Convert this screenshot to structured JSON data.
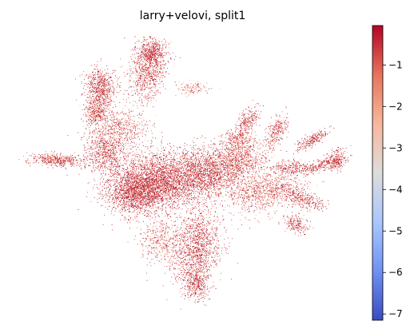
{
  "chart_data": {
    "type": "scatter",
    "title": "larry+velovi, split1",
    "xlabel": "",
    "ylabel": "",
    "colormap": "coolwarm",
    "colorbar": {
      "range": [
        -7.15,
        -0.05
      ],
      "ticks": [
        -1,
        -2,
        -3,
        -4,
        -5,
        -6,
        -7
      ],
      "tick_labels": [
        "−1",
        "−2",
        "−3",
        "−4",
        "−5",
        "−6",
        "−7"
      ],
      "colors": [
        "#3b4cc0",
        "#6f92f3",
        "#aac7fd",
        "#dddcdc",
        "#f7b89c",
        "#e7745b",
        "#b40426"
      ]
    },
    "frame": false,
    "grid": false
  }
}
